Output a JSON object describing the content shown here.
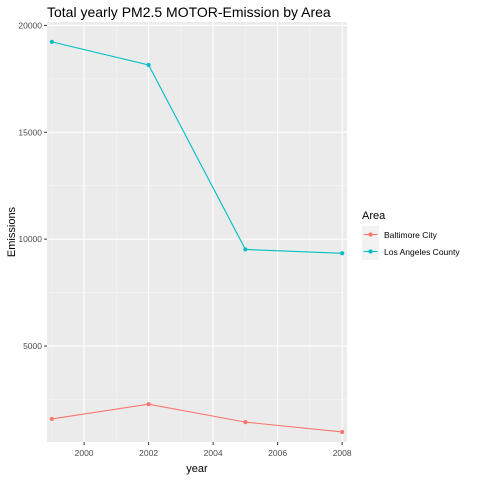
{
  "chart_data": {
    "type": "line",
    "title": "Total yearly PM2.5 MOTOR-Emission by Area",
    "xlabel": "year",
    "ylabel": "Emissions",
    "x": [
      1999,
      2002,
      2005,
      2008
    ],
    "series": [
      {
        "name": "Baltimore City",
        "color": "#F8766D",
        "values": [
          1590,
          2280,
          1440,
          980
        ]
      },
      {
        "name": "Los Angeles County",
        "color": "#00BFC4",
        "values": [
          19230,
          18150,
          9520,
          9340
        ]
      }
    ],
    "xlim": [
      1998.85,
      2008.15
    ],
    "ylim": [
      510,
      20160
    ],
    "x_ticks": [
      2000,
      2002,
      2004,
      2006,
      2008
    ],
    "x_tick_labels": [
      "2000",
      "2002",
      "2004",
      "2006",
      "2008"
    ],
    "y_ticks": [
      5000,
      10000,
      15000,
      20000
    ],
    "y_tick_labels": [
      "5000",
      "10000",
      "15000",
      "20000"
    ],
    "legend": {
      "title": "Area",
      "position": "right"
    },
    "grid": true,
    "panel_background": "#EBEBEB"
  }
}
